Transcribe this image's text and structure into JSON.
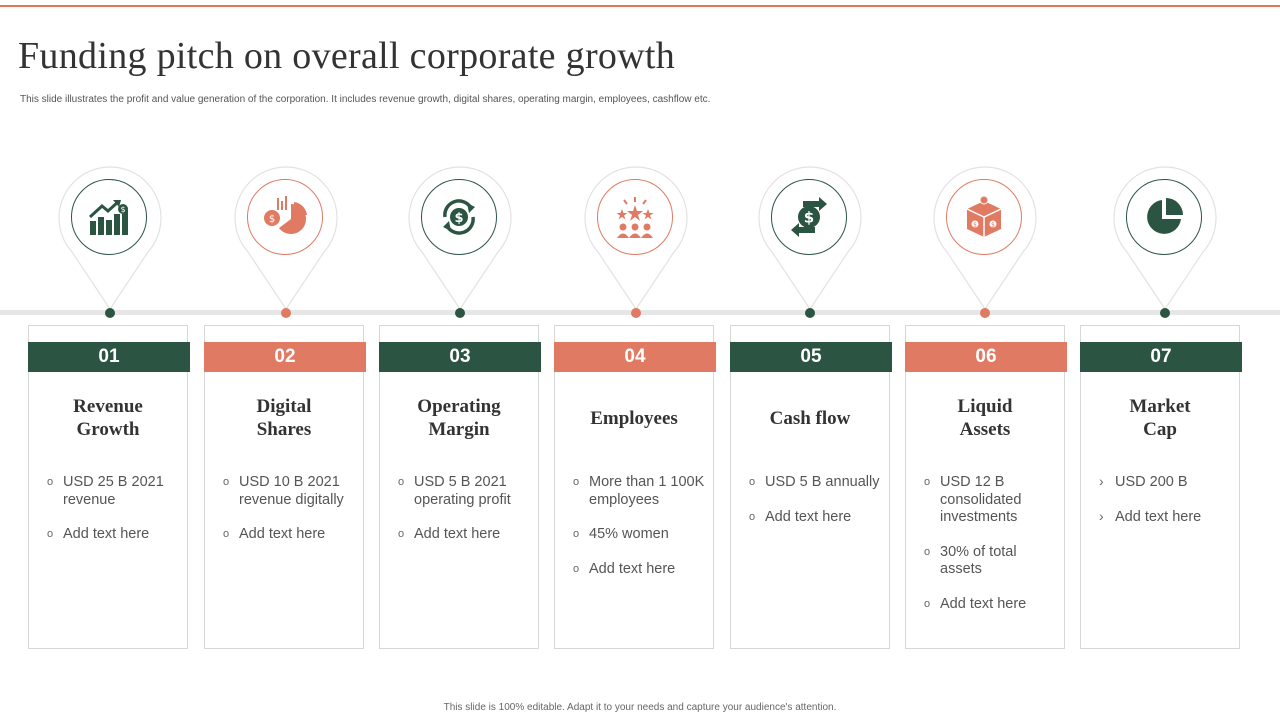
{
  "header": {
    "title": "Funding pitch on overall corporate growth",
    "subtitle": "This slide illustrates the profit and value generation of the corporation. It includes revenue growth, digital shares, operating margin, employees, cashflow etc."
  },
  "colors": {
    "green": "#2b5542",
    "coral": "#e07a63",
    "track": "#e6e6e6",
    "accent_line": "#e0765c"
  },
  "steps": [
    {
      "number": "01",
      "title_lines": [
        "Revenue",
        "Growth"
      ],
      "icon": "revenue-growth-icon",
      "color": "green",
      "bullets": [
        "USD 25 B 2021 revenue",
        "Add text here"
      ]
    },
    {
      "number": "02",
      "title_lines": [
        "Digital",
        "Shares"
      ],
      "icon": "digital-shares-icon",
      "color": "coral",
      "bullets": [
        "USD 10 B 2021 revenue digitally",
        "Add text here"
      ]
    },
    {
      "number": "03",
      "title_lines": [
        "Operating",
        "Margin"
      ],
      "icon": "operating-margin-icon",
      "color": "green",
      "bullets": [
        "USD 5 B 2021 operating profit",
        "Add text here"
      ]
    },
    {
      "number": "04",
      "title_lines": [
        "Employees"
      ],
      "icon": "employees-icon",
      "color": "coral",
      "bullets": [
        "More than 1 100K employees",
        "45% women",
        "Add text here"
      ]
    },
    {
      "number": "05",
      "title_lines": [
        "Cash flow"
      ],
      "icon": "cash-flow-icon",
      "color": "green",
      "bullets": [
        "USD 5 B annually",
        "Add text here"
      ]
    },
    {
      "number": "06",
      "title_lines": [
        "Liquid",
        "Assets"
      ],
      "icon": "liquid-assets-icon",
      "color": "coral",
      "bullets": [
        "USD 12  B consolidated investments",
        "30% of total assets",
        "Add text here"
      ]
    },
    {
      "number": "07",
      "title_lines": [
        "Market",
        "Cap"
      ],
      "icon": "market-cap-icon",
      "color": "green",
      "bullets": [
        "USD 200 B",
        "Add text here"
      ],
      "marker": "arrow"
    }
  ],
  "footer": "This slide is 100% editable. Adapt it to your needs and capture your audience's attention."
}
